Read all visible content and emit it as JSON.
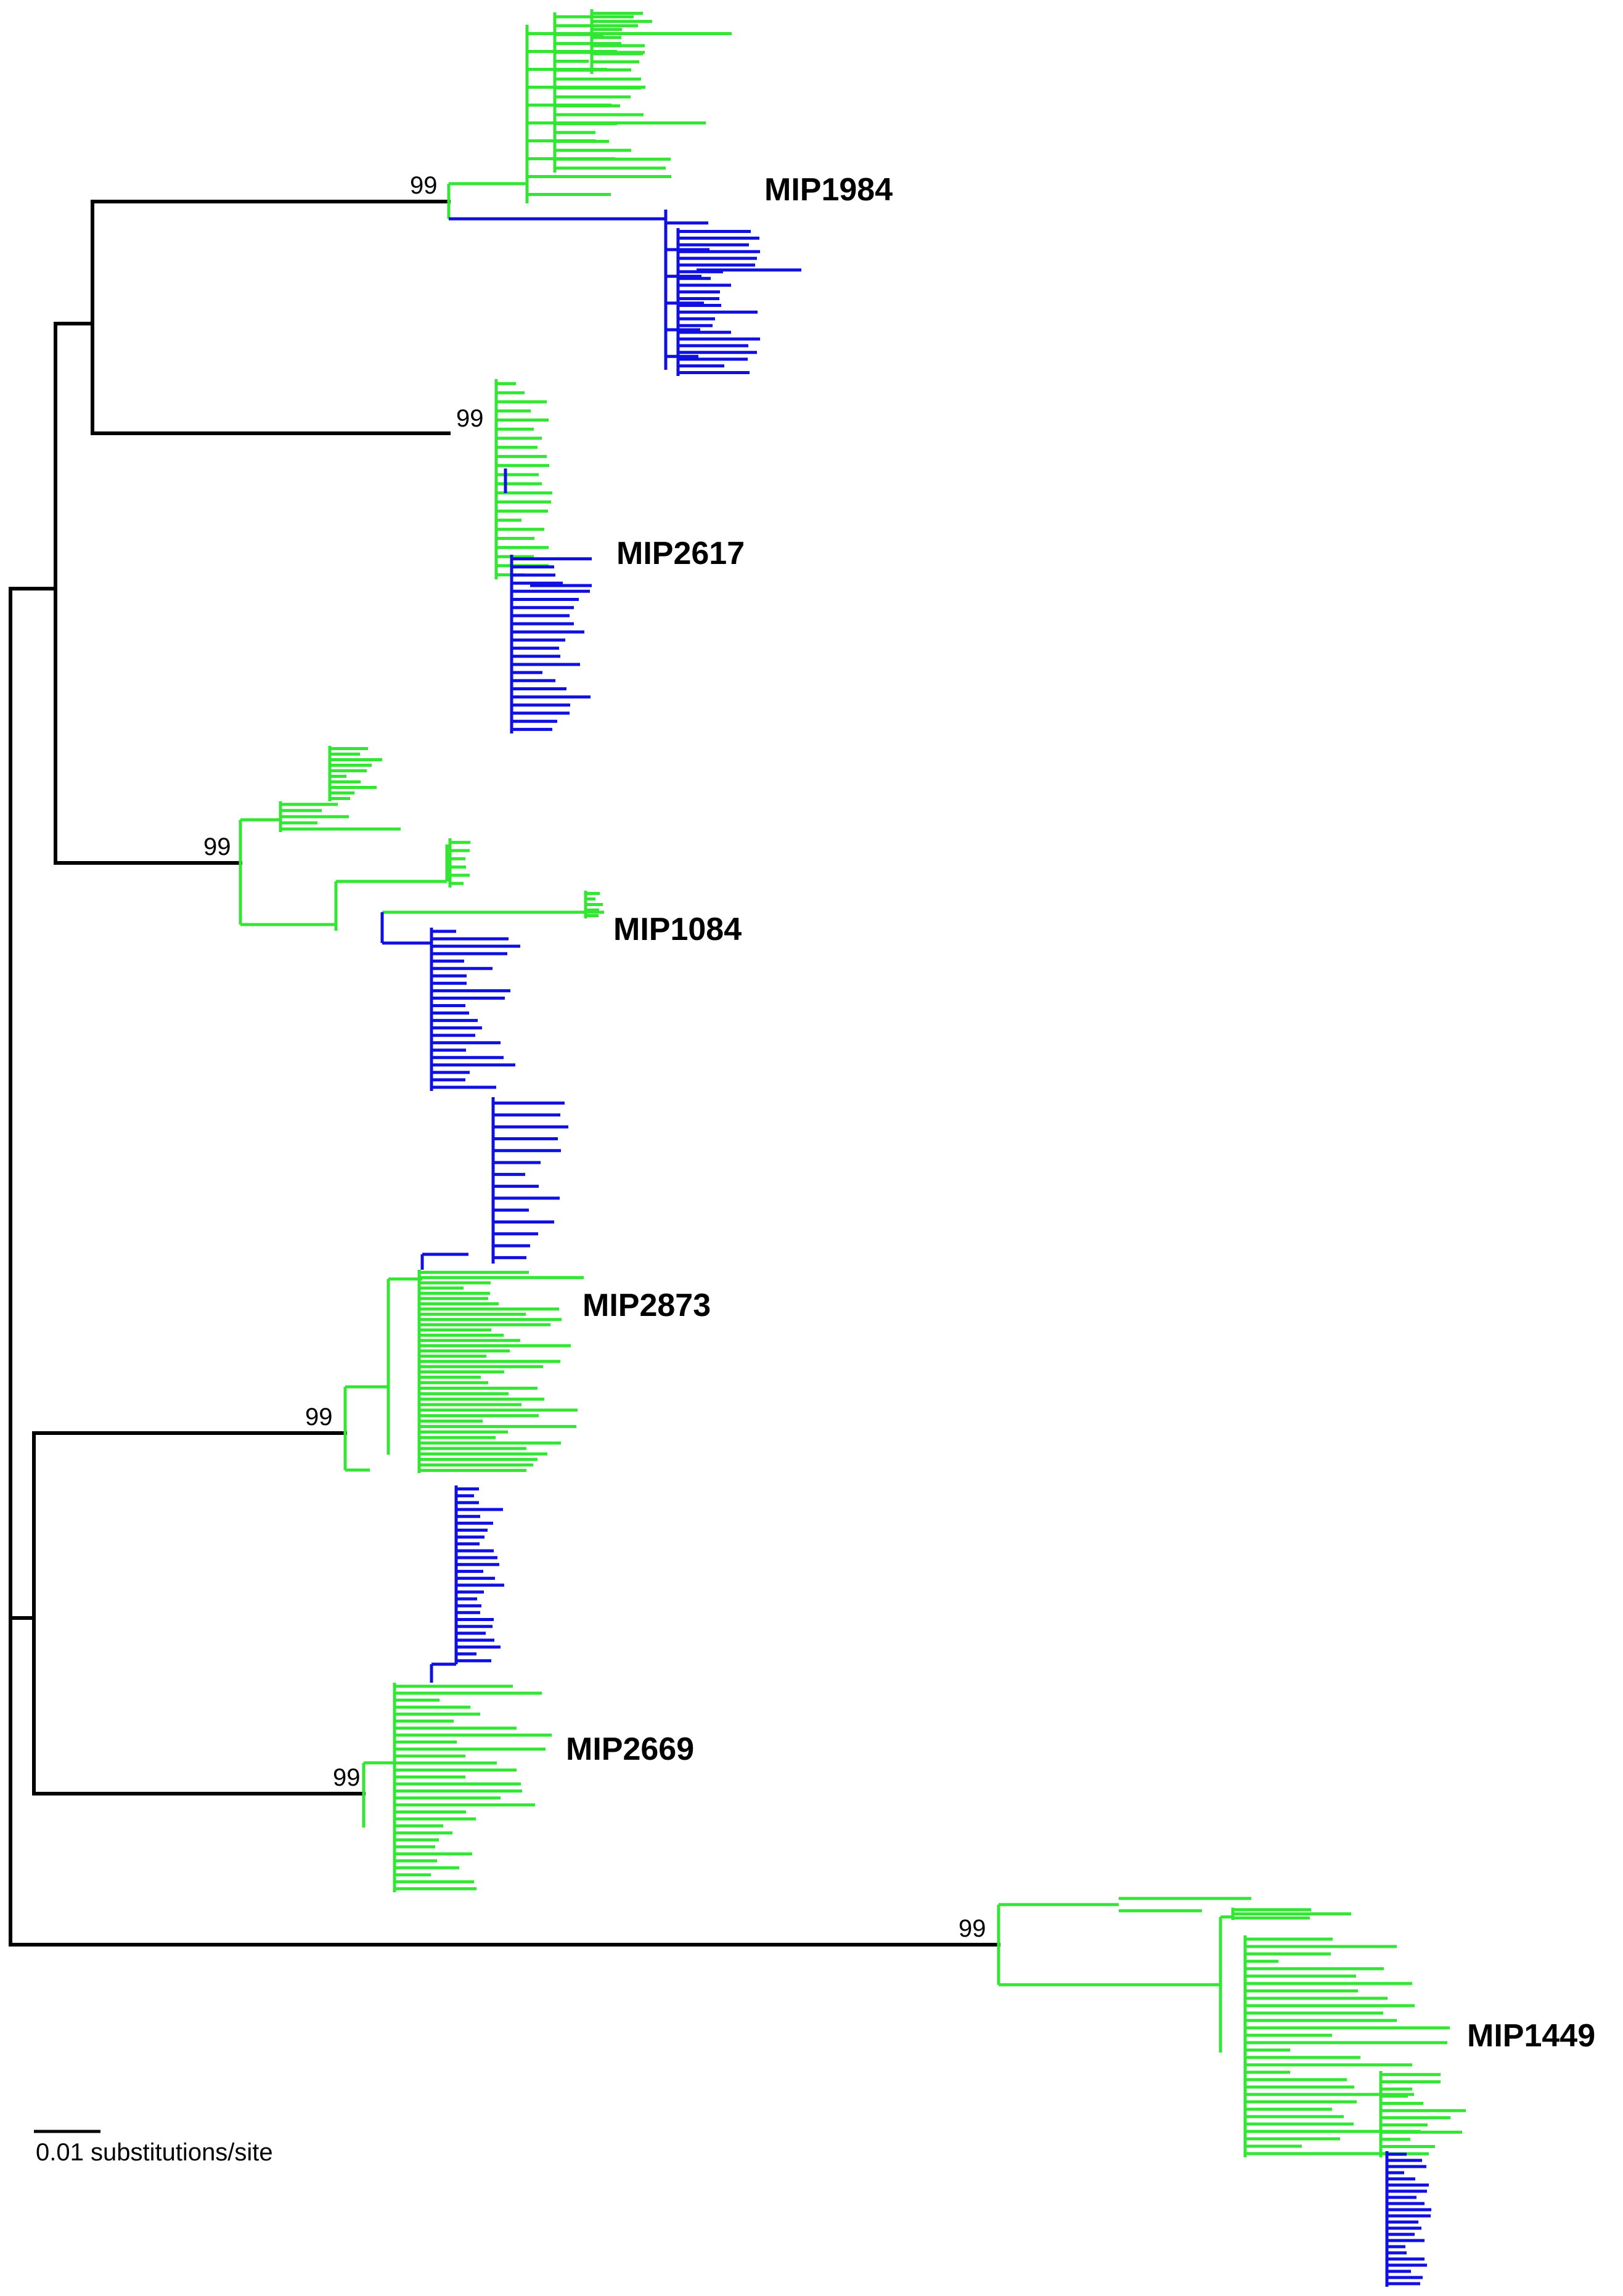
{
  "colors": {
    "backbone": "#000000",
    "green": "#33e633",
    "blue": "#1010e0"
  },
  "scale_bar": {
    "label": "0.01 substitutions/site"
  },
  "clades": [
    {
      "name": "MIP1984",
      "bootstrap": "99"
    },
    {
      "name": "MIP2617",
      "bootstrap": "99"
    },
    {
      "name": "MIP1084",
      "bootstrap": "99"
    },
    {
      "name": "MIP2873",
      "bootstrap": "99"
    },
    {
      "name": "MIP2669",
      "bootstrap": "99"
    },
    {
      "name": "MIP1449",
      "bootstrap": "99"
    }
  ]
}
